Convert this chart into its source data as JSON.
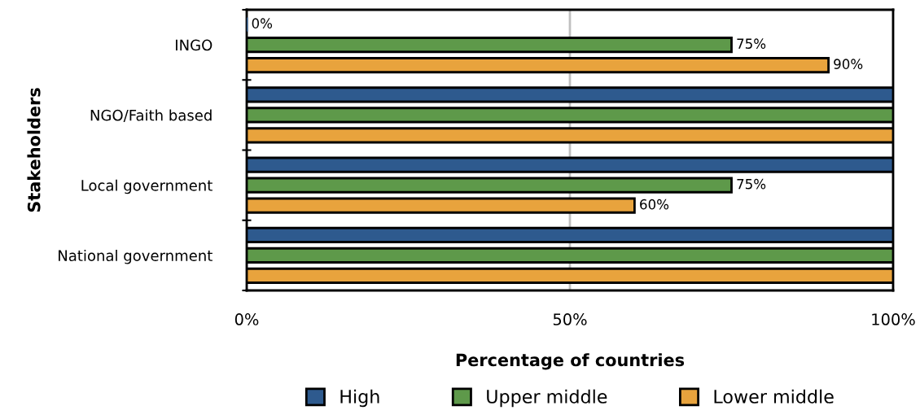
{
  "chart_data": {
    "type": "bar",
    "orientation": "horizontal",
    "xlabel": "Percentage of countries",
    "ylabel": "Stakeholders",
    "categories": [
      "INGO",
      "NGO/Faith based",
      "Local government",
      "National government"
    ],
    "series": [
      {
        "name": "High",
        "color": "#2e5a8e",
        "values": [
          0,
          100,
          100,
          100
        ],
        "value_labels": [
          "0%",
          null,
          null,
          null
        ]
      },
      {
        "name": "Upper middle",
        "color": "#5e994a",
        "values": [
          75,
          100,
          75,
          100
        ],
        "value_labels": [
          "75%",
          null,
          "75%",
          null
        ]
      },
      {
        "name": "Lower middle",
        "color": "#e8a33d",
        "values": [
          90,
          100,
          60,
          100
        ],
        "value_labels": [
          "90%",
          null,
          "60%",
          null
        ]
      }
    ],
    "xlim": [
      0,
      100
    ],
    "xticks": [
      {
        "value": 0,
        "label": "0%"
      },
      {
        "value": 50,
        "label": "50%"
      },
      {
        "value": 100,
        "label": "100%"
      }
    ],
    "grid": "x",
    "legend": "bottom"
  }
}
